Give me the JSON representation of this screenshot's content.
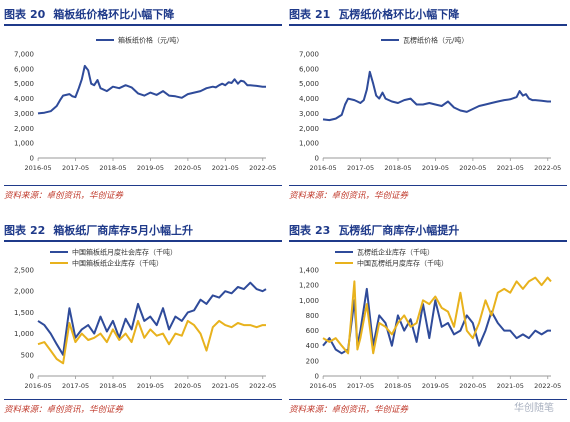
{
  "panels": [
    {
      "figure_label": "图表",
      "figure_num": "20",
      "heading": "箱板纸价格环比小幅下降",
      "source": "资料来源：卓创资讯，华创证券"
    },
    {
      "figure_label": "图表",
      "figure_num": "21",
      "heading": "瓦楞纸价格环比小幅下降",
      "source": "资料来源：卓创资讯，华创证券"
    },
    {
      "figure_label": "图表",
      "figure_num": "22",
      "heading": "箱板纸厂商库存5月小幅上升",
      "source": "资料来源：卓创资讯，华创证券"
    },
    {
      "figure_label": "图表",
      "figure_num": "23",
      "heading": "瓦楞纸厂商库存小幅提升",
      "source": "资料来源：卓创资讯，华创证券"
    }
  ],
  "watermark": "华创随笔",
  "colors": {
    "blue": "#2f4b9a",
    "gold": "#e8b21d",
    "axis": "#999999",
    "text": "#333333",
    "accent": "#1f3a8a"
  },
  "chart_data": [
    {
      "type": "line",
      "ylim": [
        0,
        7000
      ],
      "yticks": [
        0,
        1000,
        2000,
        3000,
        4000,
        5000,
        6000,
        7000
      ],
      "xticks": [
        "2016-05",
        "2017-05",
        "2018-05",
        "2019-05",
        "2020-05",
        "2021-05",
        "2022-05"
      ],
      "xrange": [
        2016.33,
        2022.42
      ],
      "series": [
        {
          "name": "箱板纸价格（元/吨）",
          "color": "#2f4b9a",
          "x": [
            2016.33,
            2016.5,
            2016.67,
            2016.83,
            2016.92,
            2017.0,
            2017.17,
            2017.25,
            2017.33,
            2017.42,
            2017.5,
            2017.58,
            2017.67,
            2017.75,
            2017.83,
            2017.92,
            2018.0,
            2018.17,
            2018.33,
            2018.5,
            2018.67,
            2018.83,
            2019.0,
            2019.17,
            2019.33,
            2019.5,
            2019.67,
            2019.83,
            2020.0,
            2020.17,
            2020.33,
            2020.5,
            2020.67,
            2020.83,
            2021.0,
            2021.08,
            2021.17,
            2021.25,
            2021.33,
            2021.42,
            2021.5,
            2021.58,
            2021.67,
            2021.75,
            2021.83,
            2021.92,
            2022.0,
            2022.17,
            2022.33,
            2022.42
          ],
          "y": [
            3000,
            3050,
            3150,
            3500,
            3900,
            4200,
            4300,
            4150,
            4100,
            4700,
            5300,
            6200,
            5900,
            5000,
            4900,
            5250,
            4700,
            4500,
            4800,
            4700,
            4900,
            4750,
            4350,
            4200,
            4400,
            4250,
            4500,
            4200,
            4150,
            4050,
            4300,
            4400,
            4500,
            4700,
            4800,
            4750,
            4900,
            5000,
            4900,
            5100,
            5050,
            5300,
            5000,
            5200,
            5150,
            4900,
            4900,
            4850,
            4800,
            4800
          ]
        }
      ]
    },
    {
      "type": "line",
      "ylim": [
        0,
        7000
      ],
      "yticks": [
        0,
        1000,
        2000,
        3000,
        4000,
        5000,
        6000,
        7000
      ],
      "xticks": [
        "2016-05",
        "2017-05",
        "2018-05",
        "2019-05",
        "2020-05",
        "2021-05",
        "2022-05"
      ],
      "xrange": [
        2016.33,
        2022.42
      ],
      "series": [
        {
          "name": "瓦楞纸价格（元/吨）",
          "color": "#2f4b9a",
          "x": [
            2016.33,
            2016.5,
            2016.67,
            2016.83,
            2016.92,
            2017.0,
            2017.17,
            2017.25,
            2017.33,
            2017.42,
            2017.5,
            2017.58,
            2017.67,
            2017.75,
            2017.83,
            2017.92,
            2018.0,
            2018.17,
            2018.33,
            2018.5,
            2018.67,
            2018.83,
            2019.0,
            2019.17,
            2019.33,
            2019.5,
            2019.67,
            2019.83,
            2020.0,
            2020.17,
            2020.33,
            2020.5,
            2020.67,
            2020.83,
            2021.0,
            2021.17,
            2021.33,
            2021.5,
            2021.58,
            2021.67,
            2021.75,
            2021.83,
            2021.92,
            2022.0,
            2022.17,
            2022.33,
            2022.42
          ],
          "y": [
            2600,
            2550,
            2650,
            2900,
            3600,
            4000,
            3900,
            3800,
            3700,
            3900,
            4600,
            5800,
            5000,
            4200,
            4000,
            4400,
            4000,
            3800,
            3700,
            3900,
            4000,
            3600,
            3600,
            3700,
            3600,
            3500,
            3800,
            3400,
            3200,
            3100,
            3300,
            3500,
            3600,
            3700,
            3800,
            3900,
            3950,
            4100,
            4500,
            4200,
            4300,
            4000,
            3900,
            3900,
            3850,
            3800,
            3800
          ]
        }
      ]
    },
    {
      "type": "line",
      "ylim": [
        0,
        2500
      ],
      "yticks": [
        0,
        500,
        1000,
        1500,
        2000,
        2500
      ],
      "xticks": [
        "2016-05",
        "2017-05",
        "2018-05",
        "2019-05",
        "2020-05",
        "2021-05",
        "2022-05"
      ],
      "xrange": [
        2016.33,
        2022.42
      ],
      "series": [
        {
          "name": "中国箱板纸月度社会库存（千吨）",
          "color": "#2f4b9a",
          "x": [
            2016.33,
            2016.5,
            2016.67,
            2016.83,
            2017.0,
            2017.17,
            2017.33,
            2017.5,
            2017.67,
            2017.83,
            2018.0,
            2018.17,
            2018.33,
            2018.5,
            2018.67,
            2018.83,
            2019.0,
            2019.17,
            2019.33,
            2019.5,
            2019.67,
            2019.83,
            2020.0,
            2020.17,
            2020.33,
            2020.5,
            2020.67,
            2020.83,
            2021.0,
            2021.17,
            2021.33,
            2021.5,
            2021.67,
            2021.83,
            2022.0,
            2022.17,
            2022.33,
            2022.42
          ],
          "y": [
            1300,
            1200,
            1000,
            750,
            500,
            1600,
            900,
            1100,
            1200,
            1000,
            1400,
            1050,
            1300,
            900,
            1350,
            1100,
            1700,
            1300,
            1400,
            1200,
            1600,
            1100,
            1400,
            1300,
            1500,
            1550,
            1800,
            1700,
            1900,
            1850,
            2000,
            1950,
            2100,
            2050,
            2200,
            2050,
            2000,
            2050
          ]
        },
        {
          "name": "中国箱板纸企业库存（千吨）",
          "color": "#e8b21d",
          "x": [
            2016.33,
            2016.5,
            2016.67,
            2016.83,
            2017.0,
            2017.17,
            2017.33,
            2017.5,
            2017.67,
            2017.83,
            2018.0,
            2018.17,
            2018.33,
            2018.5,
            2018.67,
            2018.83,
            2019.0,
            2019.17,
            2019.33,
            2019.5,
            2019.67,
            2019.83,
            2020.0,
            2020.17,
            2020.33,
            2020.5,
            2020.67,
            2020.83,
            2021.0,
            2021.17,
            2021.33,
            2021.5,
            2021.67,
            2021.83,
            2022.0,
            2022.17,
            2022.33,
            2022.42
          ],
          "y": [
            750,
            800,
            600,
            400,
            300,
            1250,
            800,
            1000,
            850,
            900,
            1000,
            800,
            1100,
            850,
            1000,
            800,
            1300,
            900,
            1100,
            950,
            1000,
            750,
            1000,
            950,
            1300,
            1200,
            1000,
            600,
            1150,
            1300,
            1200,
            1150,
            1250,
            1200,
            1200,
            1150,
            1200,
            1200
          ]
        }
      ]
    },
    {
      "type": "line",
      "ylim": [
        0,
        1400
      ],
      "yticks": [
        0,
        200,
        400,
        600,
        800,
        1000,
        1200,
        1400
      ],
      "xticks": [
        "2016-05",
        "2017-05",
        "2018-05",
        "2019-05",
        "2020-05",
        "2021-05",
        "2022-05"
      ],
      "xrange": [
        2016.33,
        2022.42
      ],
      "series": [
        {
          "name": "瓦楞纸企业库存（千吨）",
          "color": "#2f4b9a",
          "x": [
            2016.33,
            2016.5,
            2016.67,
            2016.83,
            2017.0,
            2017.17,
            2017.25,
            2017.33,
            2017.5,
            2017.67,
            2017.83,
            2018.0,
            2018.17,
            2018.33,
            2018.5,
            2018.67,
            2018.83,
            2019.0,
            2019.17,
            2019.33,
            2019.5,
            2019.67,
            2019.83,
            2020.0,
            2020.17,
            2020.33,
            2020.5,
            2020.67,
            2020.83,
            2021.0,
            2021.17,
            2021.33,
            2021.5,
            2021.67,
            2021.83,
            2022.0,
            2022.17,
            2022.33,
            2022.42
          ],
          "y": [
            400,
            500,
            350,
            300,
            350,
            1000,
            400,
            600,
            1150,
            400,
            800,
            700,
            400,
            800,
            600,
            750,
            450,
            950,
            500,
            1000,
            650,
            700,
            550,
            600,
            800,
            700,
            400,
            600,
            850,
            700,
            600,
            600,
            500,
            550,
            500,
            600,
            550,
            600,
            600
          ]
        },
        {
          "name": "中国瓦楞纸月度库存（千吨）",
          "color": "#e8b21d",
          "x": [
            2016.33,
            2016.5,
            2016.67,
            2016.83,
            2017.0,
            2017.17,
            2017.25,
            2017.33,
            2017.5,
            2017.67,
            2017.83,
            2018.0,
            2018.17,
            2018.33,
            2018.5,
            2018.67,
            2018.83,
            2019.0,
            2019.17,
            2019.33,
            2019.5,
            2019.67,
            2019.83,
            2020.0,
            2020.17,
            2020.33,
            2020.5,
            2020.67,
            2020.83,
            2021.0,
            2021.17,
            2021.33,
            2021.5,
            2021.67,
            2021.83,
            2022.0,
            2022.17,
            2022.33,
            2022.42
          ],
          "y": [
            500,
            450,
            500,
            400,
            300,
            1250,
            350,
            500,
            950,
            300,
            700,
            650,
            550,
            700,
            800,
            650,
            700,
            1000,
            950,
            1050,
            900,
            850,
            650,
            1100,
            600,
            500,
            700,
            1000,
            800,
            1100,
            1150,
            1100,
            1250,
            1150,
            1250,
            1300,
            1200,
            1300,
            1250
          ]
        }
      ]
    }
  ]
}
